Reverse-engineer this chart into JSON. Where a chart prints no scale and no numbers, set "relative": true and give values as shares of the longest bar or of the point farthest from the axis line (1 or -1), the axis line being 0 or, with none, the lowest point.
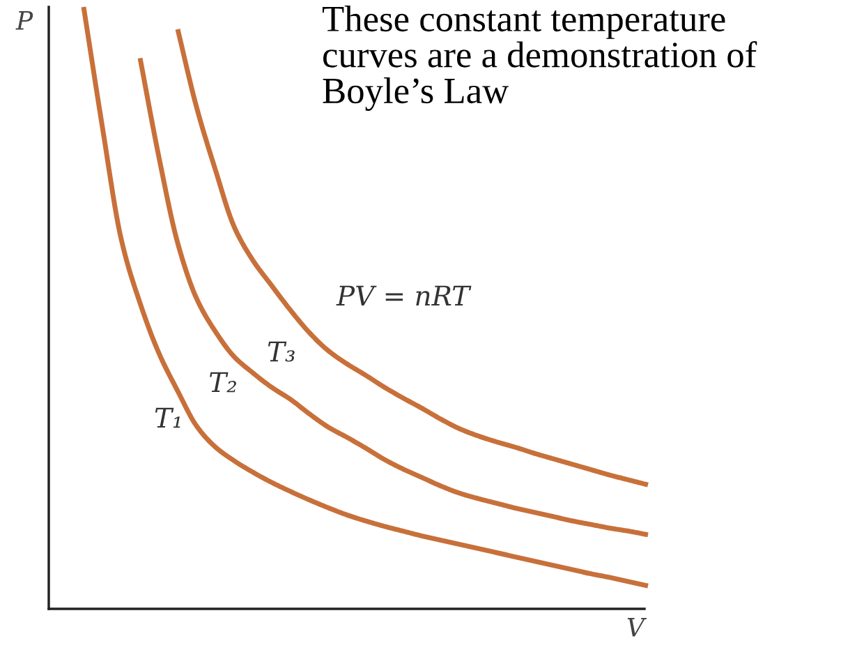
{
  "chart_data": {
    "type": "line",
    "relative": true,
    "title": "These constant temperature\ncurves are a demonstration of\nBoyle’s Law",
    "xlabel": "V",
    "ylabel": "P",
    "legend": false,
    "marker": "none",
    "line_style": "solid",
    "annotations": [
      "PV = nRT"
    ],
    "categories": [
      null,
      null,
      null,
      null,
      null,
      null,
      null,
      null,
      null,
      null,
      null,
      null,
      null,
      null,
      null,
      null,
      null,
      null,
      null,
      null,
      null,
      null,
      null,
      null,
      null,
      null,
      null,
      null,
      null,
      null,
      null
    ],
    "series": [
      {
        "name": "T₁",
        "color": "#c8703a",
        "values": [
          1.0,
          0.8,
          0.614,
          0.508,
          0.425,
          0.362,
          0.304,
          0.269,
          0.246,
          0.227,
          0.21,
          0.195,
          0.181,
          0.168,
          0.156,
          0.146,
          0.137,
          0.129,
          0.121,
          0.114,
          0.107,
          0.1,
          0.093,
          0.086,
          0.079,
          0.072,
          0.065,
          0.058,
          0.052,
          0.045,
          0.038
        ]
      },
      {
        "name": "T₂",
        "color": "#c8703a",
        "values": [
          null,
          null,
          null,
          0.915,
          0.751,
          0.608,
          0.516,
          0.461,
          0.419,
          0.392,
          0.368,
          0.348,
          0.324,
          0.302,
          0.285,
          0.267,
          0.248,
          0.232,
          0.218,
          0.204,
          0.192,
          0.183,
          0.175,
          0.167,
          0.16,
          0.153,
          0.146,
          0.14,
          0.134,
          0.129,
          0.123
        ]
      },
      {
        "name": "T₃",
        "color": "#c8703a",
        "values": [
          null,
          null,
          null,
          null,
          null,
          0.963,
          0.834,
          0.73,
          0.635,
          0.579,
          0.537,
          0.496,
          0.459,
          0.429,
          0.407,
          0.388,
          0.368,
          0.35,
          0.333,
          0.315,
          0.299,
          0.287,
          0.277,
          0.268,
          0.258,
          0.249,
          0.24,
          0.231,
          0.222,
          0.214,
          0.206
        ]
      }
    ]
  }
}
